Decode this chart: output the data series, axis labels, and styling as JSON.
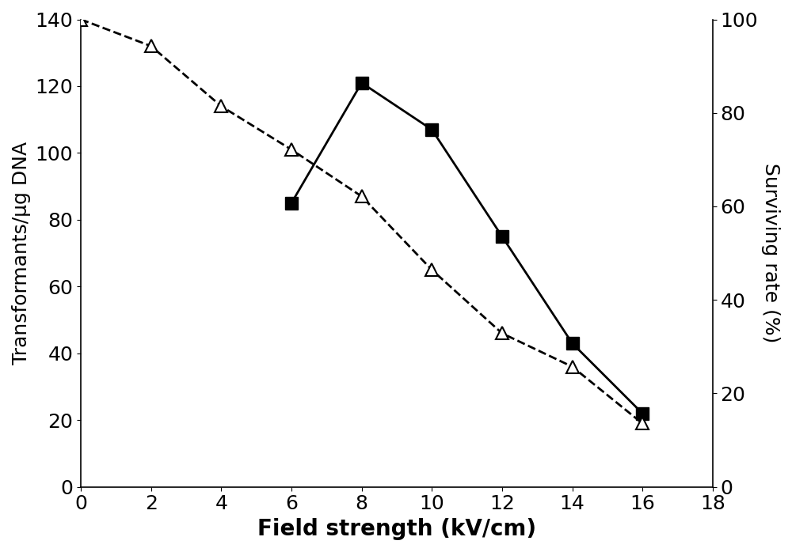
{
  "solid_x": [
    6,
    8,
    10,
    12,
    14,
    16
  ],
  "solid_y": [
    85,
    121,
    107,
    75,
    43,
    22
  ],
  "dashed_x": [
    0,
    2,
    4,
    6,
    8,
    10,
    12,
    14,
    16
  ],
  "dashed_y_left": [
    140,
    132,
    114,
    101,
    87,
    65,
    46,
    36,
    19
  ],
  "left_ylim": [
    0,
    140
  ],
  "right_ylim": [
    0,
    100
  ],
  "left_yticks": [
    0,
    20,
    40,
    60,
    80,
    100,
    120,
    140
  ],
  "right_yticks": [
    0,
    20,
    40,
    60,
    80,
    100
  ],
  "xlim": [
    0,
    18
  ],
  "xticks": [
    0,
    2,
    4,
    6,
    8,
    10,
    12,
    14,
    16,
    18
  ],
  "xlabel": "Field strength (kV/cm)",
  "ylabel_left": "Transformants/μg DNA",
  "ylabel_right": "Surviving rate (%)",
  "background_color": "#ffffff",
  "line_color": "#000000",
  "xlabel_fontsize": 20,
  "ylabel_fontsize": 18,
  "tick_fontsize": 18,
  "axis_linewidth": 1.2
}
